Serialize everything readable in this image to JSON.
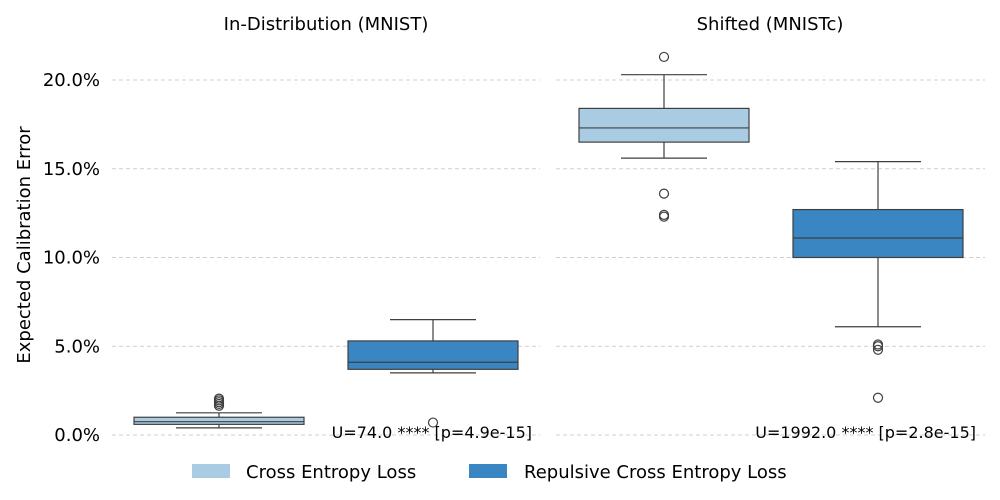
{
  "chart_data": {
    "type": "box",
    "ylabel": "Expected Calibration Error",
    "ylim": [
      0,
      0.2
    ],
    "yticks": [
      "0.0%",
      "5.0%",
      "10.0%",
      "15.0%",
      "20.0%"
    ],
    "grid": true,
    "legend_position": "bottom-center",
    "series": [
      {
        "name": "Cross Entropy Loss",
        "color": "#a9cce3"
      },
      {
        "name": "Repulsive Cross Entropy Loss",
        "color": "#3a86c2"
      }
    ],
    "panels": [
      {
        "title": "In-Distribution (MNIST)",
        "stat_text": "U=74.0 **** [p=4.9e-15]",
        "boxes": [
          {
            "series": "Cross Entropy Loss",
            "whisker_low": 0.004,
            "q1": 0.006,
            "median": 0.0075,
            "q3": 0.01,
            "whisker_high": 0.0125,
            "fliers": [
              0.0165,
              0.0175,
              0.0185,
              0.0195,
              0.0205
            ]
          },
          {
            "series": "Repulsive Cross Entropy Loss",
            "whisker_low": 0.035,
            "q1": 0.037,
            "median": 0.041,
            "q3": 0.053,
            "whisker_high": 0.065,
            "fliers": [
              0.007
            ]
          }
        ]
      },
      {
        "title": "Shifted (MNISTc)",
        "stat_text": "U=1992.0 **** [p=2.8e-15]",
        "boxes": [
          {
            "series": "Cross Entropy Loss",
            "whisker_low": 0.156,
            "q1": 0.165,
            "median": 0.173,
            "q3": 0.184,
            "whisker_high": 0.203,
            "fliers": [
              0.213,
              0.136,
              0.124,
              0.123
            ]
          },
          {
            "series": "Repulsive Cross Entropy Loss",
            "whisker_low": 0.061,
            "q1": 0.1,
            "median": 0.111,
            "q3": 0.127,
            "whisker_high": 0.154,
            "fliers": [
              0.051,
              0.05,
              0.048,
              0.021
            ]
          }
        ]
      }
    ]
  }
}
